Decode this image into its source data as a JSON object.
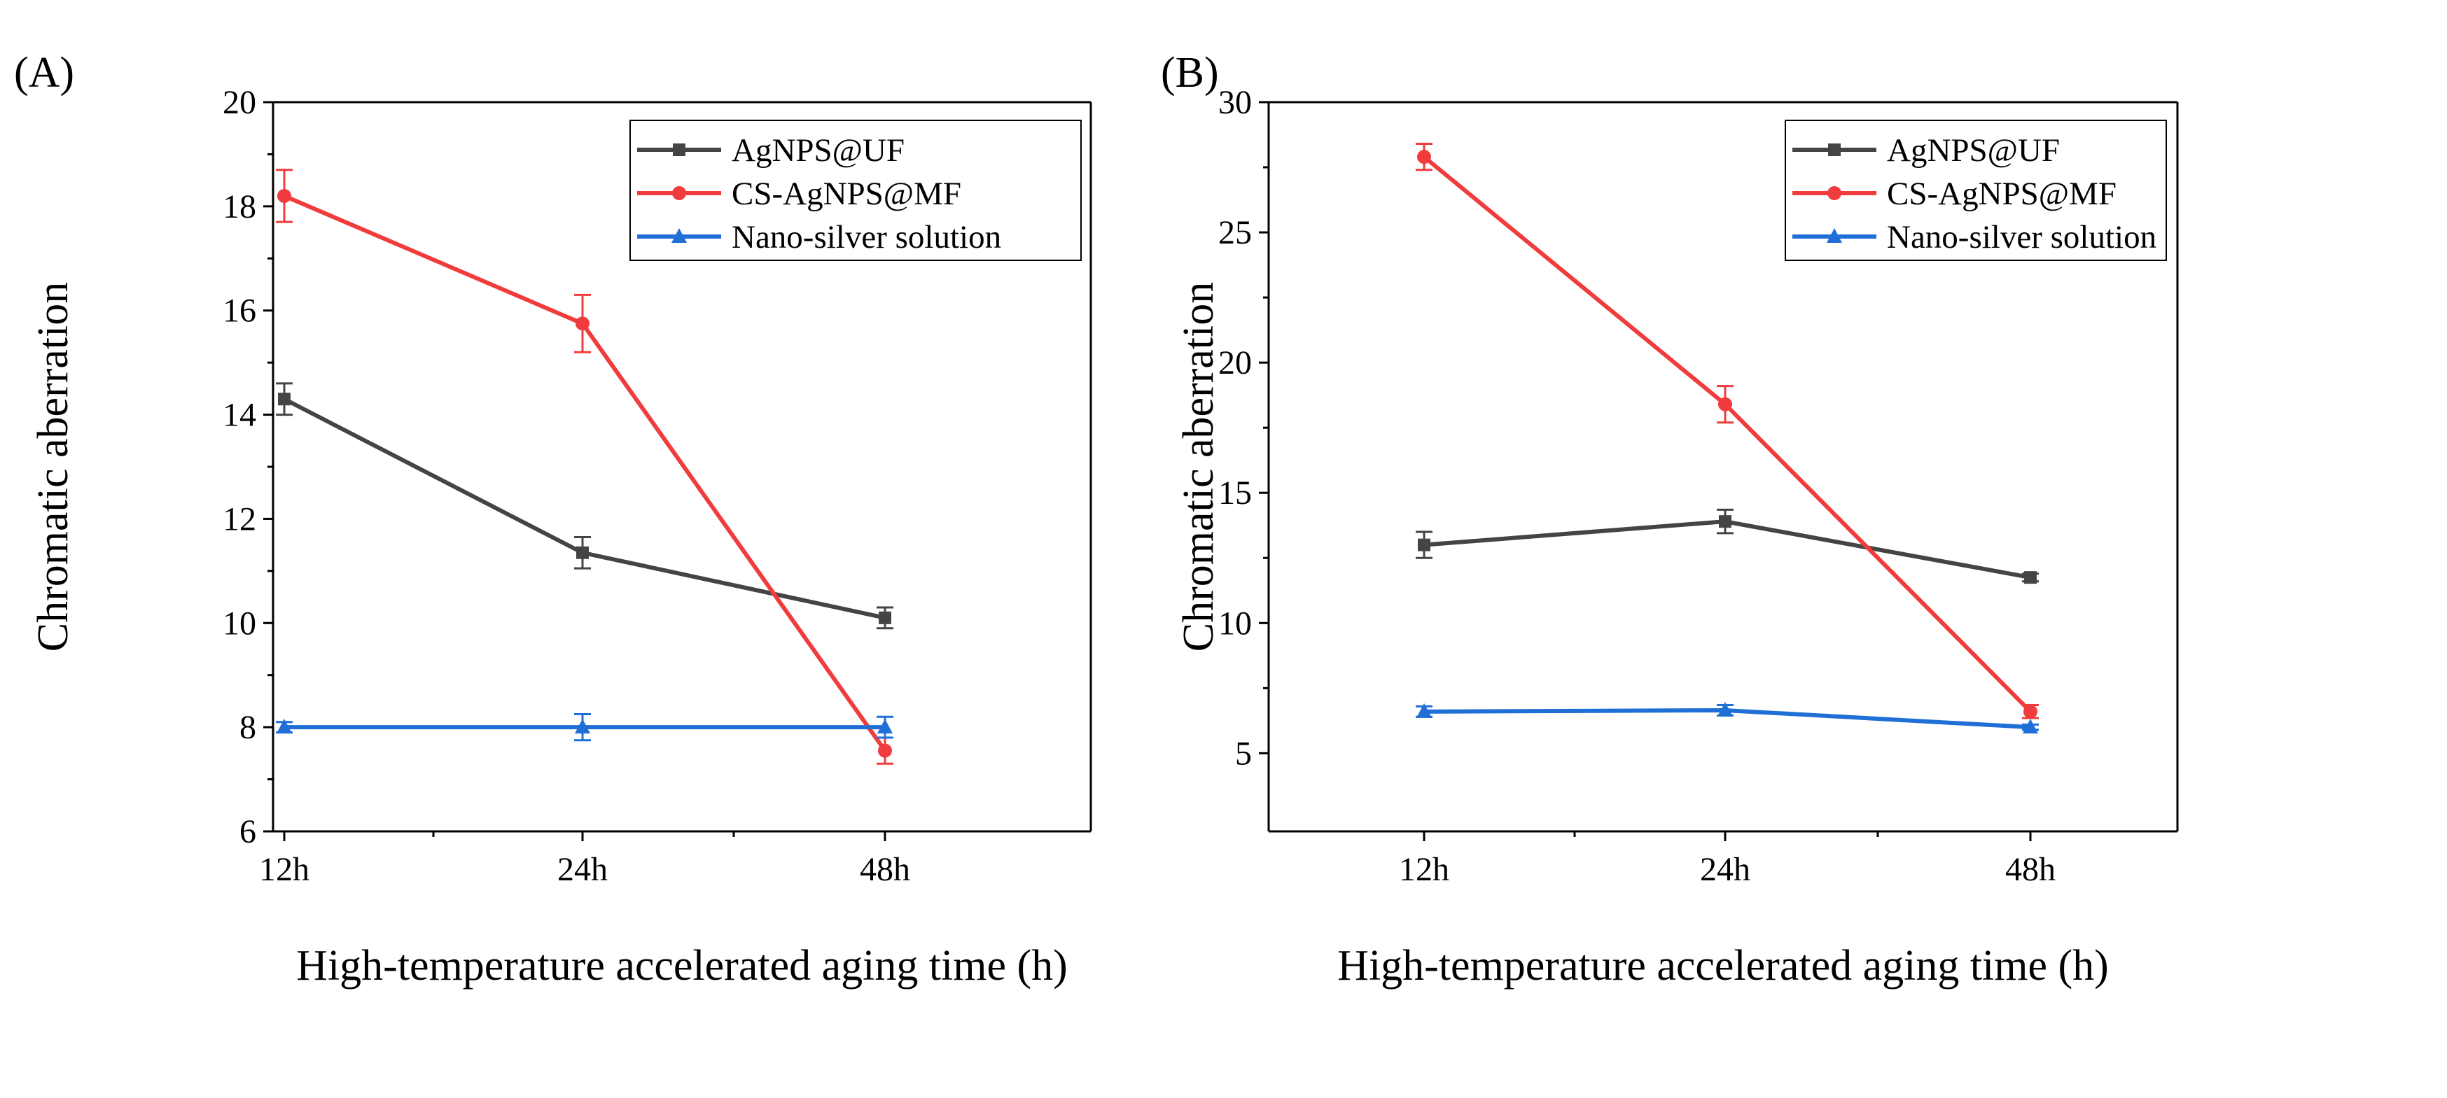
{
  "chart_data": [
    {
      "type": "line",
      "panel_label": "(A)",
      "xlabel": "High-temperature accelerated aging time (h)",
      "ylabel": "Chromatic aberration",
      "categories": [
        "12h",
        "24h",
        "48h"
      ],
      "ylim": [
        6,
        20
      ],
      "yticks": [
        6,
        8,
        10,
        12,
        14,
        16,
        18,
        20
      ],
      "grid": false,
      "legend_position": "top-right",
      "series": [
        {
          "name": "AgNPS@UF",
          "color": "#444444",
          "marker": "square",
          "values": [
            14.3,
            11.35,
            10.1
          ],
          "errors": [
            0.3,
            0.3,
            0.2
          ]
        },
        {
          "name": "CS-AgNPS@MF",
          "color": "#f03c3c",
          "marker": "circle",
          "values": [
            18.2,
            15.75,
            7.55
          ],
          "errors": [
            0.5,
            0.55,
            0.25
          ]
        },
        {
          "name": "Nano-silver solution",
          "color": "#1f6fd6",
          "marker": "triangle",
          "values": [
            8.0,
            8.0,
            8.0
          ],
          "errors": [
            0.1,
            0.25,
            0.2
          ]
        }
      ]
    },
    {
      "type": "line",
      "panel_label": "(B)",
      "xlabel": "High-temperature accelerated aging time (h)",
      "ylabel": "Chromatic aberration",
      "categories": [
        "12h",
        "24h",
        "48h"
      ],
      "ylim": [
        2,
        30
      ],
      "yticks": [
        5,
        10,
        15,
        20,
        25,
        30
      ],
      "grid": false,
      "legend_position": "top-right",
      "series": [
        {
          "name": "AgNPS@UF",
          "color": "#444444",
          "marker": "square",
          "values": [
            13.0,
            13.9,
            11.75
          ],
          "errors": [
            0.5,
            0.45,
            0.15
          ]
        },
        {
          "name": "CS-AgNPS@MF",
          "color": "#f03c3c",
          "marker": "circle",
          "values": [
            27.9,
            18.4,
            6.6
          ],
          "errors": [
            0.5,
            0.7,
            0.25
          ]
        },
        {
          "name": "Nano-silver solution",
          "color": "#1f6fd6",
          "marker": "triangle",
          "values": [
            6.6,
            6.65,
            6.0
          ],
          "errors": [
            0.2,
            0.2,
            0.1
          ]
        }
      ]
    }
  ]
}
